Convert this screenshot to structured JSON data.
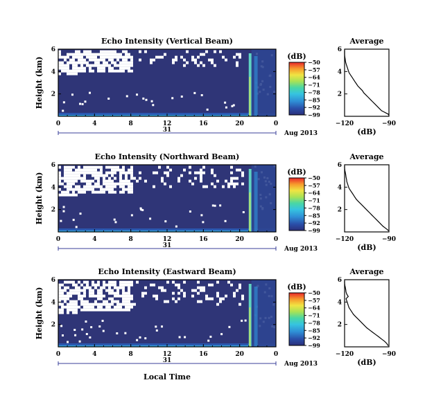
{
  "figure": {
    "x_date_label": "Aug 2013",
    "day_label": "31",
    "x_axis_title": "Local Time"
  },
  "chart_data": [
    {
      "type": "heatmap",
      "title": "Echo Intensity (Vertical Beam)",
      "ylabel": "Height (km)",
      "xlim": [
        0,
        24
      ],
      "ylim": [
        0,
        6
      ],
      "xticks": [
        "0",
        "4",
        "8",
        "12",
        "16",
        "20",
        "0"
      ],
      "yticks": [
        "2",
        "4",
        "6"
      ],
      "colorbar": {
        "unit": "(dB)",
        "ticks": [
          -50,
          -57,
          -64,
          -71,
          -78,
          -85,
          -92,
          -99
        ]
      },
      "background_level_db": -99,
      "white_cloud_top_km": [
        5.9,
        4.0
      ],
      "bright_band_hours": [
        21.0,
        21.3
      ],
      "profile": {
        "title": "Average",
        "xlabel": "(dB)",
        "xlim": [
          -120,
          -90
        ],
        "ylim": [
          0,
          6
        ],
        "xticks": [
          -120,
          -90
        ],
        "yticks": [
          2,
          4,
          6
        ],
        "x": [
          -120.4,
          -120.2,
          -120.0,
          -119.8,
          -119.6,
          -119.4,
          -119.0,
          -118.5,
          -118.0,
          -117.5,
          -117.0,
          -116.0,
          -115.0,
          -114.0,
          -113.0,
          -112.0,
          -111.0,
          -109.5,
          -108.0,
          -107.0,
          -105.5,
          -104.0,
          -102.5,
          -101.0,
          -99.5,
          -98.0,
          -96.5,
          -95.0,
          -93.5,
          -92.0,
          -90.5,
          -90.2
        ],
        "y": [
          5.9,
          5.7,
          5.5,
          5.3,
          5.1,
          4.9,
          4.7,
          4.5,
          4.3,
          4.1,
          3.9,
          3.7,
          3.5,
          3.3,
          3.1,
          2.9,
          2.7,
          2.5,
          2.3,
          2.1,
          1.9,
          1.7,
          1.5,
          1.3,
          1.1,
          0.9,
          0.7,
          0.5,
          0.4,
          0.3,
          0.2,
          0.1
        ]
      }
    },
    {
      "type": "heatmap",
      "title": "Echo Intensity (Northward Beam)",
      "ylabel": "Height (km)",
      "xlim": [
        0,
        24
      ],
      "ylim": [
        0,
        6
      ],
      "xticks": [
        "0",
        "4",
        "8",
        "12",
        "16",
        "20",
        "0"
      ],
      "yticks": [
        "2",
        "4",
        "6"
      ],
      "colorbar": {
        "unit": "(dB)",
        "ticks": [
          -50,
          -57,
          -64,
          -71,
          -78,
          -85,
          -92,
          -99
        ]
      },
      "background_level_db": -99,
      "white_cloud_top_km": [
        5.9,
        3.5
      ],
      "bright_band_hours": [
        21.0,
        21.3
      ],
      "profile": {
        "title": "Average",
        "xlabel": "(dB)",
        "xlim": [
          -120,
          -90
        ],
        "ylim": [
          0,
          6
        ],
        "xticks": [
          -120,
          -90
        ],
        "yticks": [
          2,
          4,
          6
        ],
        "x": [
          -120.2,
          -120.0,
          -119.8,
          -119.5,
          -119.2,
          -119.0,
          -118.7,
          -118.5,
          -118.0,
          -117.5,
          -117.0,
          -116.0,
          -115.0,
          -114.0,
          -113.0,
          -112.0,
          -110.5,
          -109.0,
          -107.5,
          -106.0,
          -104.5,
          -103.0,
          -101.5,
          -100.0,
          -98.5,
          -97.0,
          -95.5,
          -94.0,
          -92.5,
          -91.0,
          -90.3
        ],
        "y": [
          5.9,
          5.7,
          5.5,
          5.3,
          5.1,
          4.9,
          4.7,
          4.5,
          4.3,
          4.1,
          3.9,
          3.7,
          3.5,
          3.3,
          3.1,
          2.9,
          2.7,
          2.5,
          2.3,
          2.1,
          1.9,
          1.7,
          1.5,
          1.3,
          1.1,
          0.9,
          0.7,
          0.5,
          0.35,
          0.2,
          0.1
        ]
      }
    },
    {
      "type": "heatmap",
      "title": "Echo Intensity (Eastward Beam)",
      "ylabel": "Height (km)",
      "xlim": [
        0,
        24
      ],
      "ylim": [
        0,
        6
      ],
      "xticks": [
        "0",
        "4",
        "8",
        "12",
        "16",
        "20",
        "0"
      ],
      "yticks": [
        "2",
        "4",
        "6"
      ],
      "colorbar": {
        "unit": "(dB)",
        "ticks": [
          -50,
          -57,
          -64,
          -71,
          -78,
          -85,
          -92,
          -99
        ]
      },
      "background_level_db": -99,
      "white_cloud_top_km": [
        5.9,
        3.3
      ],
      "bright_band_hours": [
        21.0,
        21.3
      ],
      "profile": {
        "title": "Average",
        "xlabel": "(dB)",
        "xlim": [
          -120,
          -90
        ],
        "ylim": [
          0,
          6
        ],
        "xticks": [
          -120,
          -90
        ],
        "yticks": [
          2,
          4,
          6
        ],
        "x": [
          -120.2,
          -120.0,
          -119.8,
          -119.5,
          -119.2,
          -119.0,
          -118.5,
          -117.5,
          -119.0,
          -118.5,
          -118.0,
          -117.5,
          -117.0,
          -116.0,
          -115.0,
          -114.0,
          -112.5,
          -111.0,
          -109.5,
          -108.0,
          -106.5,
          -105.0,
          -103.0,
          -101.0,
          -99.0,
          -97.0,
          -95.0,
          -93.0,
          -91.5,
          -90.5
        ],
        "y": [
          5.9,
          5.7,
          5.5,
          5.3,
          5.1,
          4.9,
          4.7,
          4.5,
          4.3,
          4.1,
          3.9,
          3.7,
          3.5,
          3.3,
          3.1,
          2.9,
          2.7,
          2.5,
          2.3,
          2.1,
          1.9,
          1.7,
          1.5,
          1.3,
          1.1,
          0.9,
          0.7,
          0.5,
          0.3,
          0.1
        ]
      }
    }
  ]
}
